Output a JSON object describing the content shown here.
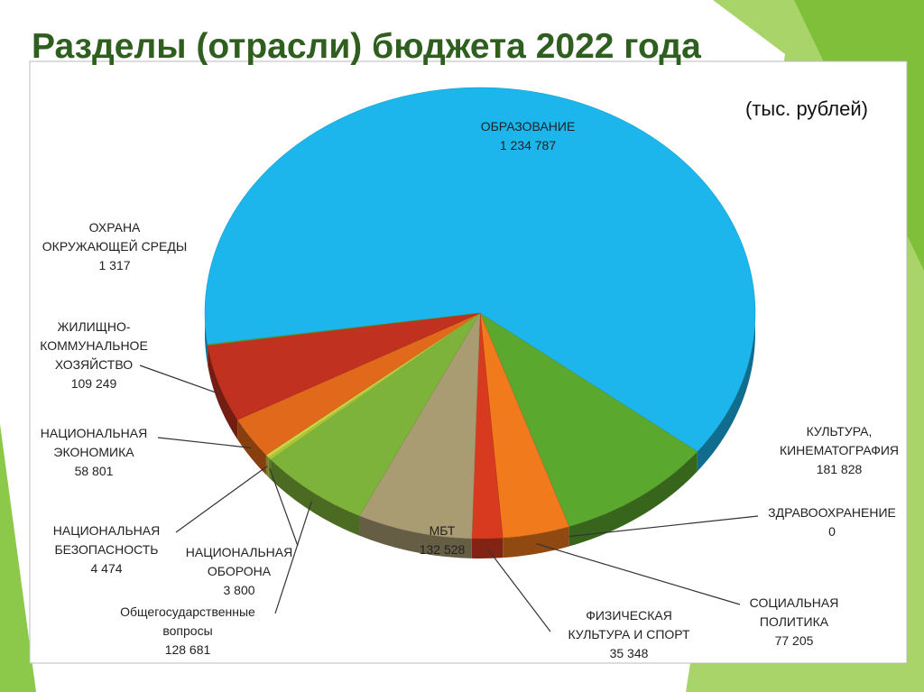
{
  "title": "Разделы (отрасли) бюджета 2022 года",
  "chart_data": {
    "type": "pie",
    "subtitle": "(тыс. рублей)",
    "categories": [
      "ОБРАЗОВАНИЕ",
      "КУЛЬТУРА,\nКИНЕМАТОГРАФИЯ",
      "ЗДРАВООХРАНЕНИЕ",
      "СОЦИАЛЬНАЯ\nПОЛИТИКА",
      "ФИЗИЧЕСКАЯ\nКУЛЬТУРА И СПОРТ",
      "МБТ",
      "Общегосударственные\nвопросы",
      "НАЦИОНАЛЬНАЯ\nОБОРОНА",
      "НАЦИОНАЛЬНАЯ\nБЕЗОПАСНОСТЬ",
      "НАЦИОНАЛЬНАЯ\nЭКОНОМИКА",
      "ЖИЛИЩНО-\nКОММУНАЛЬНОЕ\nХОЗЯЙСТВО",
      "ОХРАНА\nОКРУЖАЮЩЕЙ СРЕДЫ"
    ],
    "values": [
      1234787,
      181828,
      0,
      77205,
      35348,
      132528,
      128681,
      3800,
      4474,
      58801,
      109249,
      1317
    ],
    "value_labels": [
      "1 234 787",
      "181 828",
      "0",
      "77 205",
      "35 348",
      "132 528",
      "128 681",
      "3 800",
      "4 474",
      "58 801",
      "109 249",
      "1 317"
    ],
    "colors": [
      "#1cb6ec",
      "#5ba82f",
      "#2e7bc4",
      "#f07a1c",
      "#d83a1f",
      "#a99b72",
      "#7db33a",
      "#a6c63a",
      "#c8d444",
      "#e1691b",
      "#c0311f",
      "#6a9a30"
    ]
  }
}
